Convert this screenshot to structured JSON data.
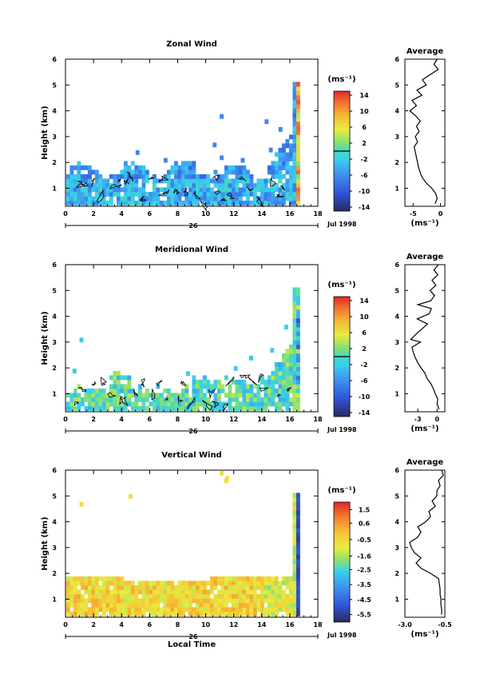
{
  "chart_data": [
    {
      "type": "heatmap",
      "title": "Zonal Wind",
      "ylabel": "Height (km)",
      "xlim": [
        0,
        18
      ],
      "ylim": [
        0.3,
        6
      ],
      "x_ticks": [
        "0",
        "2",
        "4",
        "6",
        "8",
        "10",
        "12",
        "14",
        "16",
        "18"
      ],
      "y_ticks": [
        "1",
        "2",
        "3",
        "4",
        "5",
        "6"
      ],
      "date_label": "26",
      "month_label": "Jul 1998",
      "colorbar": {
        "unit": "(ms⁻¹)",
        "range": [
          -15,
          15
        ],
        "ticks": [
          "14",
          "10",
          "6",
          "2",
          "-2",
          "-6",
          "-10",
          "-14"
        ]
      },
      "average": {
        "title": "Average",
        "xlim": [
          -6.5,
          0.8
        ],
        "x_ticks": [
          "-5",
          "0"
        ],
        "xlabel": "(ms⁻¹)",
        "profile": [
          [
            -1.0,
            0.4
          ],
          [
            -0.6,
            0.6
          ],
          [
            -0.9,
            0.8
          ],
          [
            -1.6,
            1.0
          ],
          [
            -2.6,
            1.2
          ],
          [
            -3.3,
            1.4
          ],
          [
            -3.7,
            1.6
          ],
          [
            -4.0,
            1.8
          ],
          [
            -4.2,
            2.0
          ],
          [
            -4.4,
            2.2
          ],
          [
            -4.6,
            2.4
          ],
          [
            -4.8,
            2.6
          ],
          [
            -4.2,
            2.8
          ],
          [
            -4.6,
            3.0
          ],
          [
            -3.9,
            3.2
          ],
          [
            -4.4,
            3.4
          ],
          [
            -3.7,
            3.6
          ],
          [
            -4.5,
            3.8
          ],
          [
            -5.6,
            4.0
          ],
          [
            -4.4,
            4.2
          ],
          [
            -5.2,
            4.4
          ],
          [
            -3.4,
            4.6
          ],
          [
            -4.3,
            4.8
          ],
          [
            -2.6,
            5.0
          ],
          [
            -3.3,
            5.2
          ],
          [
            -1.9,
            5.4
          ],
          [
            -0.4,
            5.6
          ],
          [
            -1.2,
            5.8
          ],
          [
            -0.6,
            6.0
          ]
        ]
      }
    },
    {
      "type": "heatmap",
      "title": "Meridional Wind",
      "ylabel": "Height (km)",
      "xlim": [
        0,
        18
      ],
      "ylim": [
        0.3,
        6
      ],
      "x_ticks": [
        "0",
        "2",
        "4",
        "6",
        "8",
        "10",
        "12",
        "14",
        "16",
        "18"
      ],
      "y_ticks": [
        "1",
        "2",
        "3",
        "4",
        "5",
        "6"
      ],
      "date_label": "26",
      "month_label": "Jul 1998",
      "colorbar": {
        "unit": "(ms⁻¹)",
        "range": [
          -15,
          15
        ],
        "ticks": [
          "14",
          "10",
          "6",
          "2",
          "-2",
          "-6",
          "-10",
          "-14"
        ]
      },
      "average": {
        "title": "Average",
        "xlim": [
          -5.0,
          1.2
        ],
        "x_ticks": [
          "-3",
          "0"
        ],
        "xlabel": "(ms⁻¹)",
        "profile": [
          [
            0.3,
            0.4
          ],
          [
            0.0,
            0.6
          ],
          [
            0.1,
            0.8
          ],
          [
            -0.3,
            1.0
          ],
          [
            -0.6,
            1.2
          ],
          [
            -1.0,
            1.4
          ],
          [
            -1.6,
            1.6
          ],
          [
            -1.9,
            1.8
          ],
          [
            -2.5,
            2.0
          ],
          [
            -3.0,
            2.2
          ],
          [
            -3.4,
            2.4
          ],
          [
            -3.7,
            2.6
          ],
          [
            -3.9,
            2.8
          ],
          [
            -2.6,
            3.0
          ],
          [
            -4.1,
            3.1
          ],
          [
            -3.3,
            3.3
          ],
          [
            -2.4,
            3.5
          ],
          [
            -1.5,
            3.7
          ],
          [
            -3.1,
            3.9
          ],
          [
            -1.2,
            4.1
          ],
          [
            -0.9,
            4.3
          ],
          [
            -3.0,
            4.45
          ],
          [
            -1.0,
            4.6
          ],
          [
            -0.4,
            4.8
          ],
          [
            -1.1,
            5.0
          ],
          [
            -0.2,
            5.2
          ],
          [
            -0.8,
            5.4
          ],
          [
            0.1,
            5.6
          ],
          [
            -0.5,
            5.8
          ],
          [
            0.2,
            6.0
          ]
        ]
      }
    },
    {
      "type": "heatmap",
      "title": "Vertical Wind",
      "xlabel": "Local Time",
      "ylabel": "Height (km)",
      "xlim": [
        0,
        18
      ],
      "ylim": [
        0.3,
        6
      ],
      "x_ticks": [
        "0",
        "2",
        "4",
        "6",
        "8",
        "10",
        "12",
        "14",
        "16",
        "18"
      ],
      "y_ticks": [
        "1",
        "2",
        "3",
        "4",
        "5",
        "6"
      ],
      "date_label": "26",
      "month_label": "Jul 1998",
      "colorbar": {
        "unit": "(ms⁻¹)",
        "range": [
          -6.0,
          2.0
        ],
        "ticks": [
          "1.5",
          "0.6",
          "-0.5",
          "-1.6",
          "-2.5",
          "-3.5",
          "-4.5",
          "-5.5"
        ]
      },
      "average": {
        "title": "Average",
        "xlim": [
          -3.0,
          -0.5
        ],
        "x_ticks": [
          "-3.0",
          "-0.5"
        ],
        "xlabel": "(ms⁻¹)",
        "profile": [
          [
            -0.7,
            0.4
          ],
          [
            -0.7,
            0.6
          ],
          [
            -0.75,
            0.8
          ],
          [
            -0.75,
            1.0
          ],
          [
            -0.8,
            1.2
          ],
          [
            -0.8,
            1.4
          ],
          [
            -0.85,
            1.6
          ],
          [
            -0.9,
            1.8
          ],
          [
            -1.4,
            2.0
          ],
          [
            -2.0,
            2.2
          ],
          [
            -2.3,
            2.4
          ],
          [
            -2.0,
            2.6
          ],
          [
            -2.4,
            2.8
          ],
          [
            -2.6,
            3.0
          ],
          [
            -2.7,
            3.2
          ],
          [
            -2.2,
            3.4
          ],
          [
            -2.0,
            3.6
          ],
          [
            -2.2,
            3.8
          ],
          [
            -1.7,
            4.0
          ],
          [
            -1.4,
            4.2
          ],
          [
            -1.5,
            4.4
          ],
          [
            -1.1,
            4.6
          ],
          [
            -1.3,
            4.8
          ],
          [
            -1.0,
            5.0
          ],
          [
            -1.0,
            5.2
          ],
          [
            -0.8,
            5.4
          ],
          [
            -0.9,
            5.6
          ],
          [
            -0.6,
            5.8
          ],
          [
            -0.7,
            6.0
          ]
        ]
      }
    }
  ]
}
